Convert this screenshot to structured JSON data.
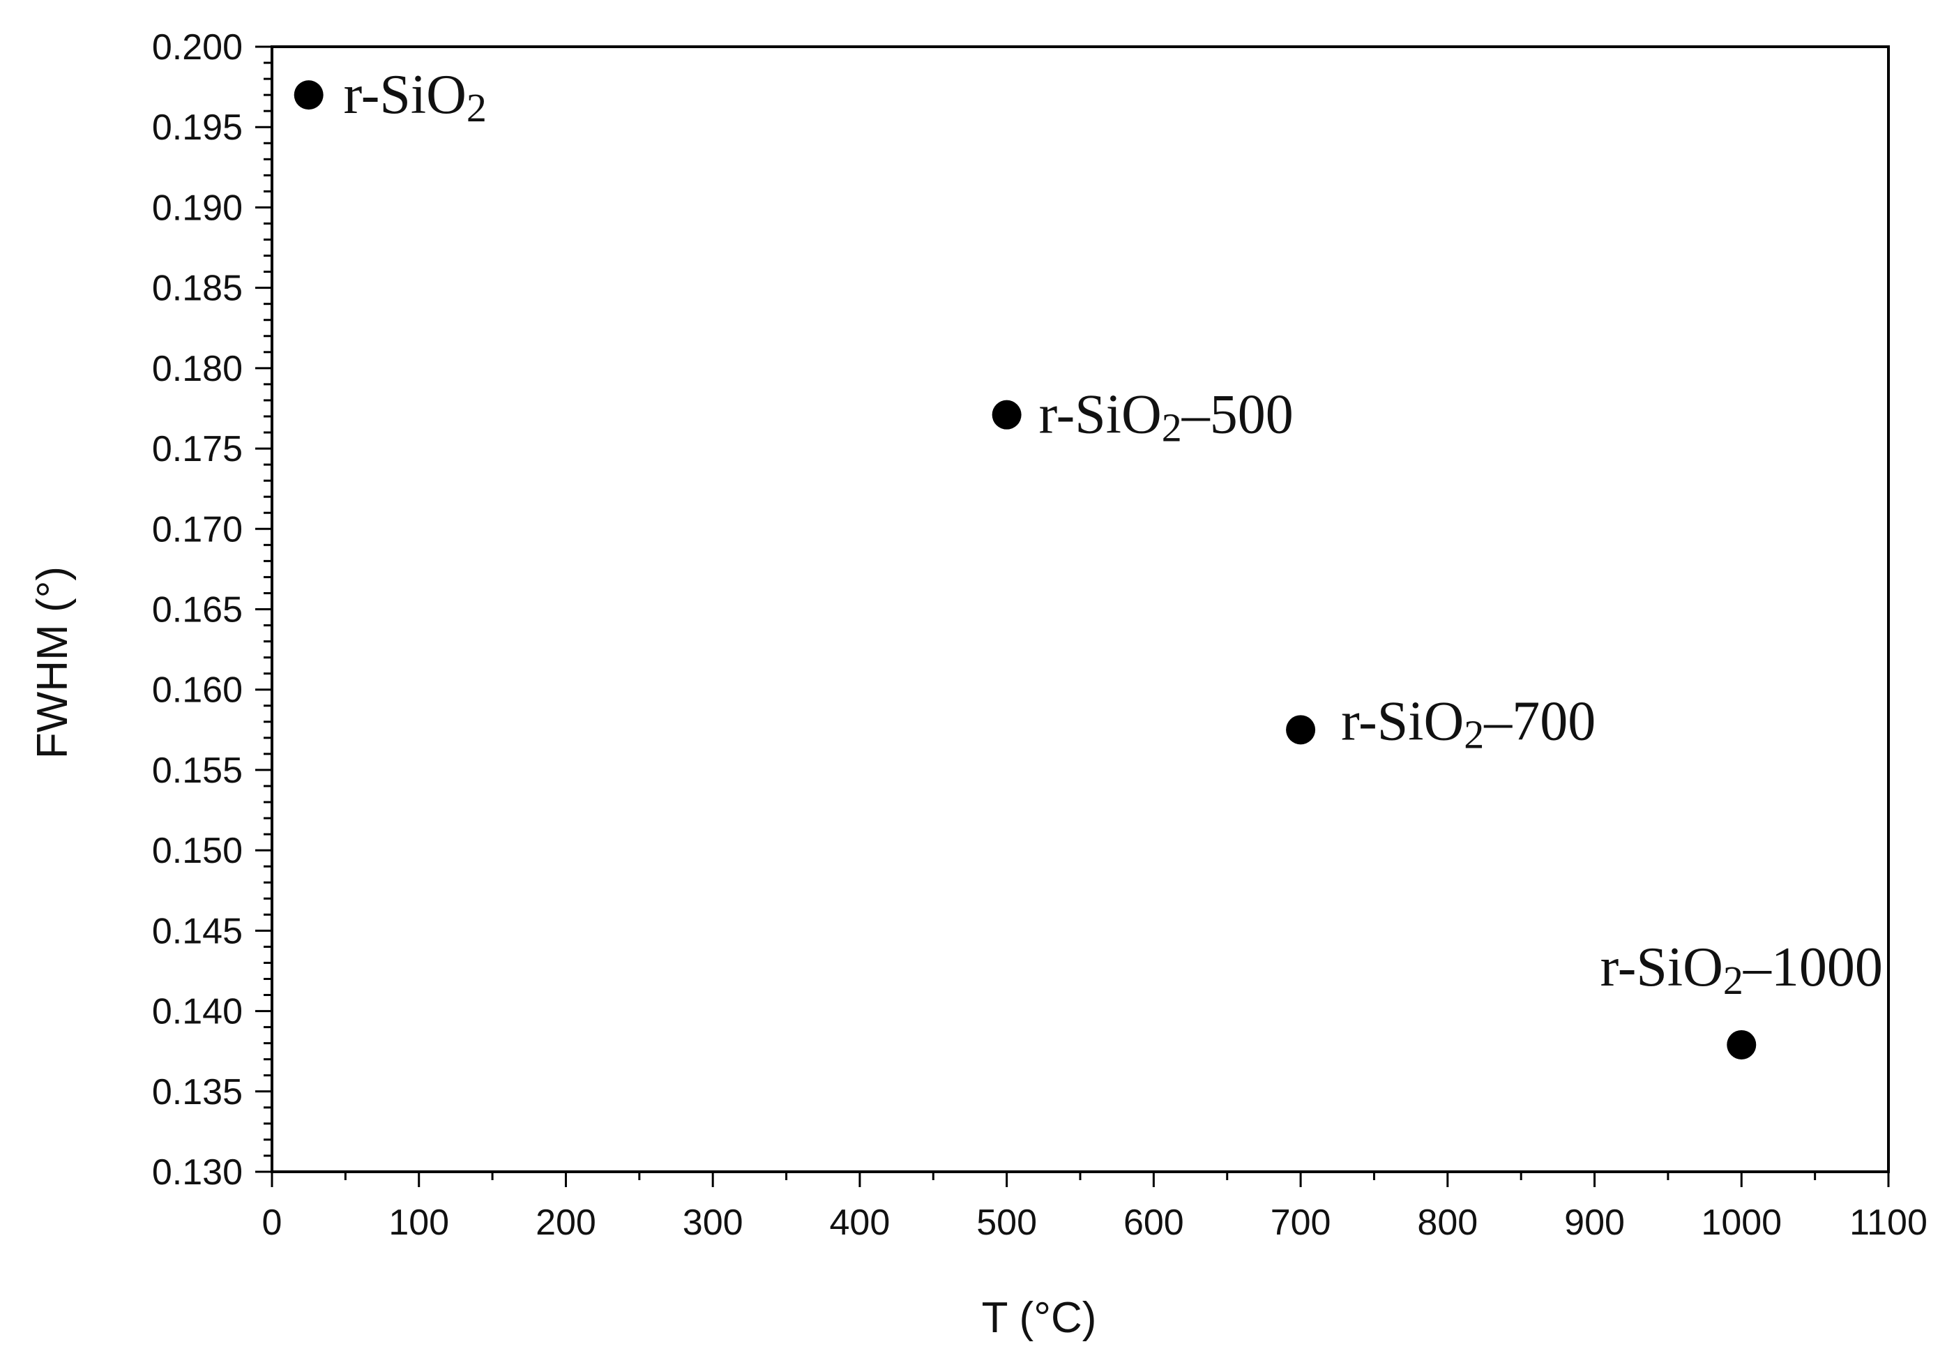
{
  "chart_data": {
    "type": "scatter",
    "title": "",
    "xlabel": "T (°C)",
    "ylabel": "FWHM (°)",
    "xlim": [
      0,
      1100
    ],
    "ylim": [
      0.13,
      0.2
    ],
    "x_ticks": [
      0,
      100,
      200,
      300,
      400,
      500,
      600,
      700,
      800,
      900,
      1000,
      1100
    ],
    "y_ticks": [
      0.13,
      0.135,
      0.14,
      0.145,
      0.15,
      0.155,
      0.16,
      0.165,
      0.17,
      0.175,
      0.18,
      0.185,
      0.19,
      0.195,
      0.2
    ],
    "x_tick_labels": [
      "0",
      "100",
      "200",
      "300",
      "400",
      "500",
      "600",
      "700",
      "800",
      "900",
      "1000",
      "1100"
    ],
    "y_tick_labels": [
      "0.130",
      "0.135",
      "0.140",
      "0.145",
      "0.150",
      "0.155",
      "0.160",
      "0.165",
      "0.170",
      "0.175",
      "0.180",
      "0.185",
      "0.190",
      "0.195",
      "0.200"
    ],
    "grid": false,
    "legend": "none",
    "marker_color": "#000000",
    "points": [
      {
        "x": 25,
        "y": 0.197,
        "label": {
          "base": "r-SiO",
          "sub": "2",
          "suffix": ""
        }
      },
      {
        "x": 500,
        "y": 0.1771,
        "label": {
          "base": "r-SiO",
          "sub": "2",
          "suffix": "–500"
        }
      },
      {
        "x": 700,
        "y": 0.1575,
        "label": {
          "base": "r-SiO",
          "sub": "2",
          "suffix": "–700"
        }
      },
      {
        "x": 1000,
        "y": 0.1379,
        "label": {
          "base": "r-SiO",
          "sub": "2",
          "suffix": "–1000"
        }
      }
    ]
  }
}
